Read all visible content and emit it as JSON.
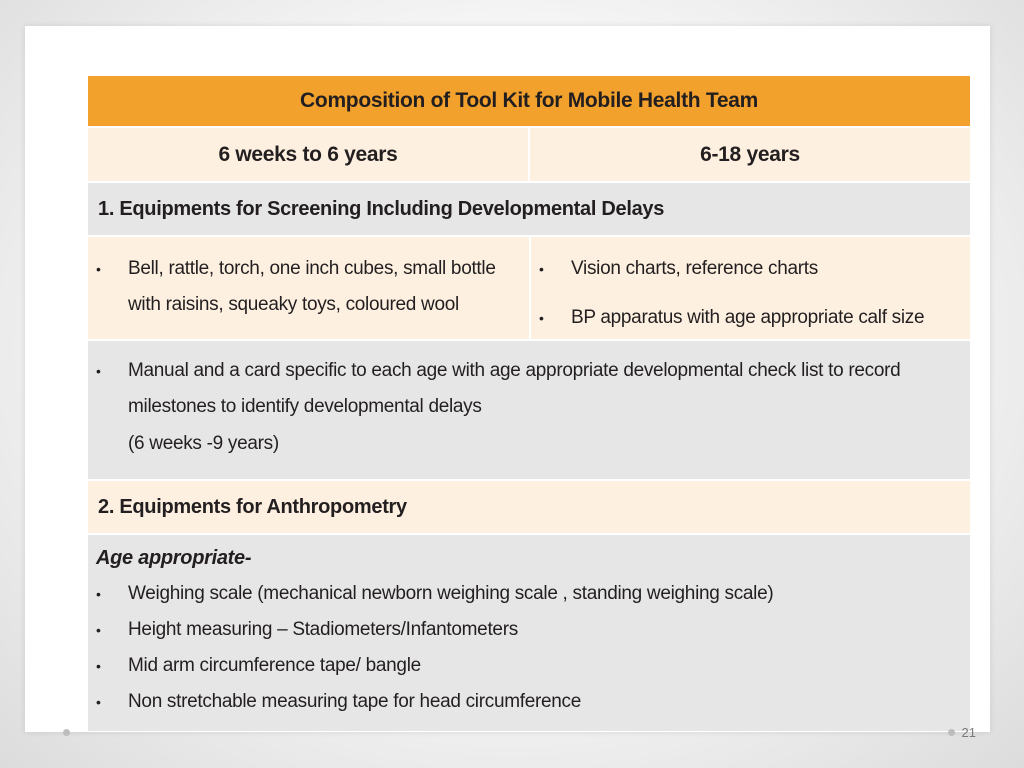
{
  "table": {
    "title": "Composition of Tool Kit for Mobile Health Team",
    "columns": [
      "6 weeks to 6 years",
      "6-18 years"
    ],
    "section1": {
      "title": "1.  Equipments for Screening  Including Developmental  Delays",
      "left_items": [
        "Bell, rattle, torch, one inch cubes, small bottle with raisins, squeaky toys, coloured wool"
      ],
      "right_items": [
        "Vision charts, reference charts",
        "BP apparatus with age appropriate calf size"
      ],
      "manual_item": "Manual and a card specific to each age with age appropriate developmental check list to record milestones to identify developmental delays",
      "manual_note": "(6 weeks -9 years)"
    },
    "section2": {
      "title": "2.  Equipments for Anthropometry",
      "heading": "Age appropriate-",
      "items": [
        "Weighing scale (mechanical newborn weighing  scale , standing weighing scale)",
        "Height measuring – Stadiometers/Infantometers",
        "Mid arm circumference tape/ bangle",
        "Non stretchable measuring tape for head circumference"
      ]
    }
  },
  "footer": {
    "page_number": "21"
  },
  "colors": {
    "title_bg": "#f2a12c",
    "light_bg": "#fdf0e0",
    "grey_bg": "#e6e6e6"
  },
  "bullet_glyph": "•"
}
